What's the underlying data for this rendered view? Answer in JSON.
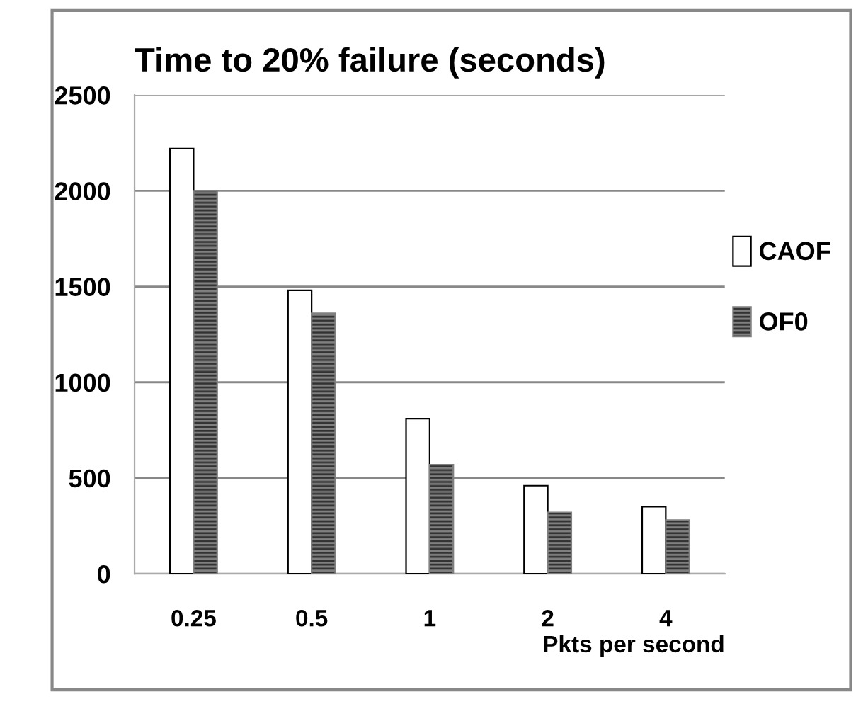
{
  "chart_data": {
    "type": "bar",
    "title": "Time to 20% failure (seconds)",
    "xlabel": "Pkts per second",
    "categories": [
      "0.25",
      "0.5",
      "1",
      "2",
      "4"
    ],
    "series": [
      {
        "name": "CAOF",
        "color": "#ffffff",
        "values": [
          2220,
          1480,
          810,
          460,
          350
        ]
      },
      {
        "name": "OF0",
        "color": "#808080",
        "values": [
          2000,
          1360,
          570,
          320,
          280
        ]
      }
    ],
    "ylim": [
      0,
      2500
    ],
    "yticks": [
      0,
      500,
      1000,
      1500,
      2000,
      2500
    ],
    "grid": "y",
    "legend": "right"
  }
}
